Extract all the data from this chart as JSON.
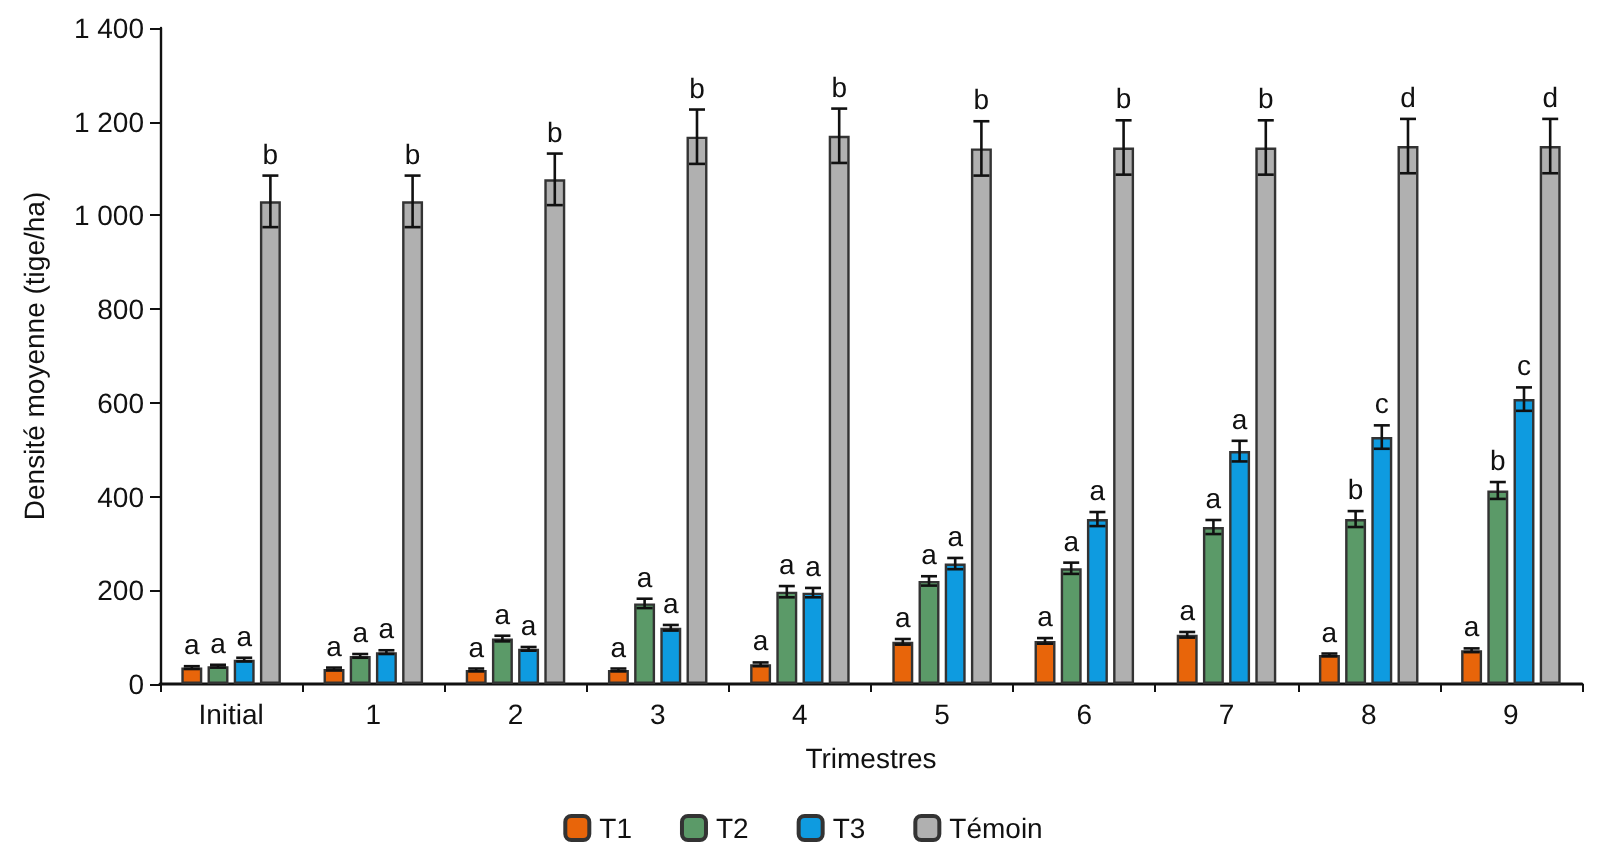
{
  "chart_data": {
    "type": "bar",
    "xlabel": "Trimestres",
    "ylabel": "Densité moyenne (tige/ha)",
    "categories": [
      "Initial",
      "1",
      "2",
      "3",
      "4",
      "5",
      "6",
      "7",
      "8",
      "9"
    ],
    "series": [
      {
        "name": "T1",
        "color": "#e8650a",
        "values": [
          35,
          32,
          30,
          30,
          42,
          90,
          92,
          105,
          62,
          72
        ],
        "errors": [
          3,
          3,
          3,
          3,
          4,
          6,
          6,
          6,
          3,
          4
        ]
      },
      {
        "name": "T2",
        "color": "#5b9a68",
        "values": [
          38,
          60,
          97,
          172,
          197,
          220,
          247,
          335,
          352,
          413
        ],
        "errors": [
          3,
          4,
          6,
          10,
          12,
          10,
          12,
          15,
          17,
          18
        ]
      },
      {
        "name": "T3",
        "color": "#0e9be0",
        "values": [
          52,
          68,
          75,
          120,
          195,
          257,
          352,
          497,
          527,
          608
        ],
        "errors": [
          4,
          4,
          4,
          6,
          10,
          12,
          15,
          22,
          25,
          25
        ]
      },
      {
        "name": "Témoin",
        "color": "#b0b0b0",
        "values": [
          1030,
          1030,
          1077,
          1168,
          1170,
          1143,
          1145,
          1145,
          1148,
          1148
        ],
        "errors": [
          55,
          55,
          55,
          58,
          58,
          58,
          58,
          58,
          58,
          58
        ]
      }
    ],
    "ylim": [
      0,
      1400
    ],
    "yticks": [
      0,
      200,
      400,
      600,
      800,
      {
        "value": 1000,
        "label": "1 000"
      },
      {
        "value": 1200,
        "label": "1 200"
      },
      {
        "value": 1400,
        "label": "1 400"
      }
    ],
    "annotations": [
      "a",
      "a",
      "a",
      "b",
      "a",
      "a",
      "a",
      "b",
      "a",
      "a",
      "a",
      "b",
      "a",
      "a",
      "a",
      "b",
      "a",
      "a",
      "a",
      "b",
      "a",
      "a",
      "a",
      "b",
      "a",
      "a",
      "a",
      "b",
      "a",
      "a",
      "a",
      "b",
      "a",
      "b",
      "c",
      "d",
      "a",
      "b",
      "c",
      "d"
    ],
    "grid": false,
    "legend": "bottom"
  }
}
